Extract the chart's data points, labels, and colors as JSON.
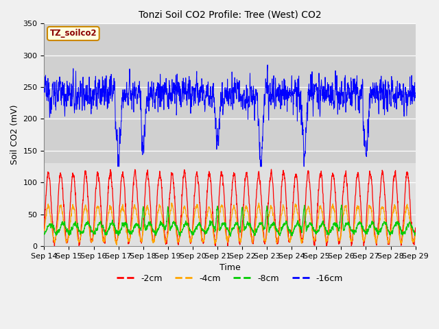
{
  "title": "Tonzi Soil CO2 Profile: Tree (West) CO2",
  "ylabel": "Soil CO2 (mV)",
  "xlabel": "Time",
  "ylim": [
    0,
    350
  ],
  "xtick_labels": [
    "Sep 14",
    "Sep 15",
    "Sep 16",
    "Sep 17",
    "Sep 18",
    "Sep 19",
    "Sep 20",
    "Sep 21",
    "Sep 22",
    "Sep 23",
    "Sep 24",
    "Sep 25",
    "Sep 26",
    "Sep 27",
    "Sep 28",
    "Sep 29"
  ],
  "legend_box_label": "TZ_soilco2",
  "legend_items": [
    "-2cm",
    "-4cm",
    "-8cm",
    "-16cm"
  ],
  "legend_colors": [
    "#ff0000",
    "#ffa500",
    "#00cc00",
    "#0000ff"
  ],
  "plot_bg_color": "#e0e0e0",
  "upper_band_color": "#d0d0d0",
  "n_points": 2160,
  "seed": 12345,
  "title_fontsize": 10,
  "axis_fontsize": 9,
  "tick_fontsize": 8
}
